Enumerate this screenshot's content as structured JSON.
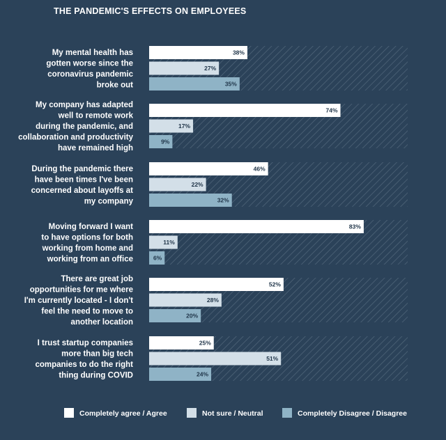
{
  "title": "THE PANDEMIC'S EFFECTS ON EMPLOYEES",
  "colors": {
    "background": "#2b4259",
    "agree": "#ffffff",
    "neutral": "#d3dfe8",
    "disagree": "#8fb3c6",
    "hatch": "#4e6478"
  },
  "chart_data": {
    "type": "bar",
    "orientation": "horizontal",
    "title": "THE PANDEMIC'S EFFECTS ON EMPLOYEES",
    "xlim": [
      0,
      100
    ],
    "value_suffix": "%",
    "legend_position": "bottom",
    "grid": false,
    "categories": [
      [
        "My mental health has",
        "gotten worse since the",
        "coronavirus pandemic",
        "broke out"
      ],
      [
        "My company has adapted",
        "well to remote work",
        "during the pandemic, and",
        "collaboration and productivity",
        "have remained high"
      ],
      [
        "During the pandemic there",
        "have been times I've been",
        "concerned about layoffs at",
        "my company"
      ],
      [
        "Moving forward I want",
        "to have options for both",
        "working from home and",
        "working from an office"
      ],
      [
        "There are great job",
        "opportunities for me where",
        "I'm currently located - I don't",
        "feel the need to move to",
        "another location"
      ],
      [
        "I trust startup companies",
        "more than big tech",
        "companies to do the right",
        "thing during COVID"
      ]
    ],
    "series": [
      {
        "name": "Completely agree / Agree",
        "values": [
          38,
          74,
          46,
          83,
          52,
          25
        ]
      },
      {
        "name": "Not sure / Neutral",
        "values": [
          27,
          17,
          22,
          11,
          28,
          51
        ]
      },
      {
        "name": "Completely Disagree / Disagree",
        "values": [
          35,
          9,
          32,
          6,
          20,
          24
        ]
      }
    ]
  }
}
